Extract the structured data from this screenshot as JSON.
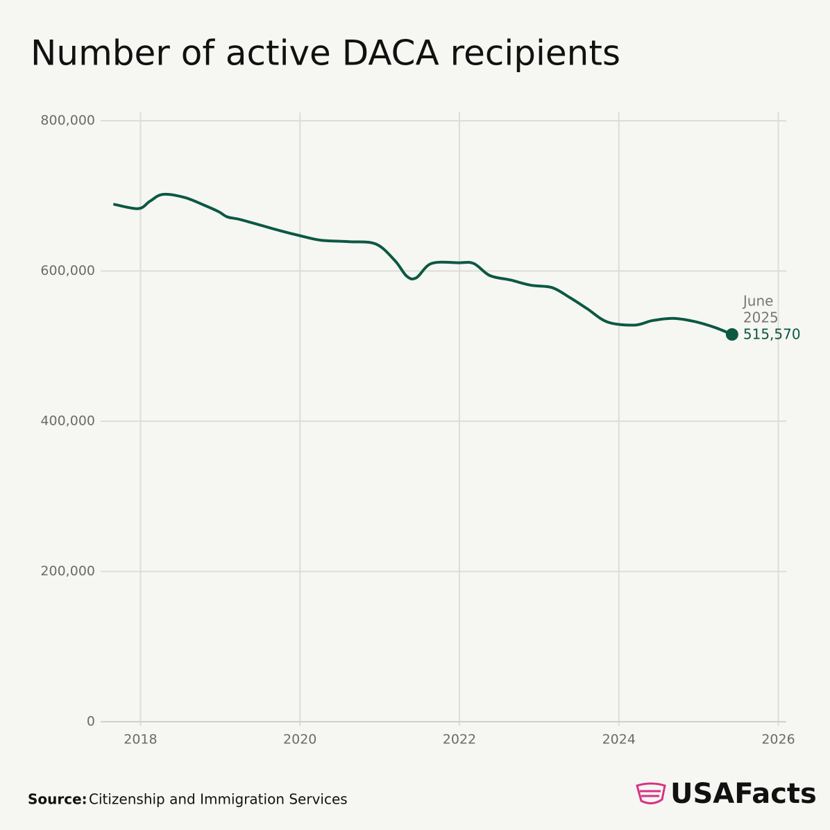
{
  "chart_data": {
    "type": "line",
    "title": "Number of active DACA recipients",
    "x": [
      2017.66,
      2017.97,
      2018.12,
      2018.28,
      2018.55,
      2018.79,
      2018.98,
      2019.09,
      2019.27,
      2019.74,
      2020.0,
      2020.26,
      2020.61,
      2020.95,
      2021.19,
      2021.34,
      2021.46,
      2021.65,
      2021.99,
      2022.18,
      2022.38,
      2022.64,
      2022.9,
      2023.16,
      2023.38,
      2023.6,
      2023.86,
      2024.2,
      2024.42,
      2024.68,
      2024.94,
      2025.2,
      2025.42
    ],
    "series": [
      {
        "name": "Active DACA recipients",
        "color": "#0b5843",
        "values": [
          689000,
          683000,
          693000,
          702000,
          698000,
          688000,
          679000,
          672000,
          668000,
          654000,
          647000,
          641000,
          639000,
          636000,
          614000,
          593000,
          591000,
          610000,
          611000,
          610000,
          594000,
          588000,
          581000,
          578000,
          565000,
          550000,
          532000,
          528000,
          534000,
          537000,
          533000,
          525000,
          515570
        ]
      }
    ],
    "annotation": {
      "lines": [
        "June",
        "2025"
      ],
      "value_label": "515,570",
      "point": 32
    },
    "xlim": [
      2017.5,
      2026.1
    ],
    "xticks": [
      2018,
      2020,
      2022,
      2024,
      2026
    ],
    "ylim": [
      0,
      800000
    ],
    "yticks": [
      0,
      {
        "value": 200000,
        "label": "200,000"
      },
      {
        "value": 400000,
        "label": "400,000"
      },
      {
        "value": 600000,
        "label": "600,000"
      },
      {
        "value": 800000,
        "label": "800,000"
      }
    ],
    "grid": true
  },
  "footer": {
    "source_label": "Source:",
    "source": "Citizenship and Immigration Services",
    "logo": "USAFacts"
  }
}
